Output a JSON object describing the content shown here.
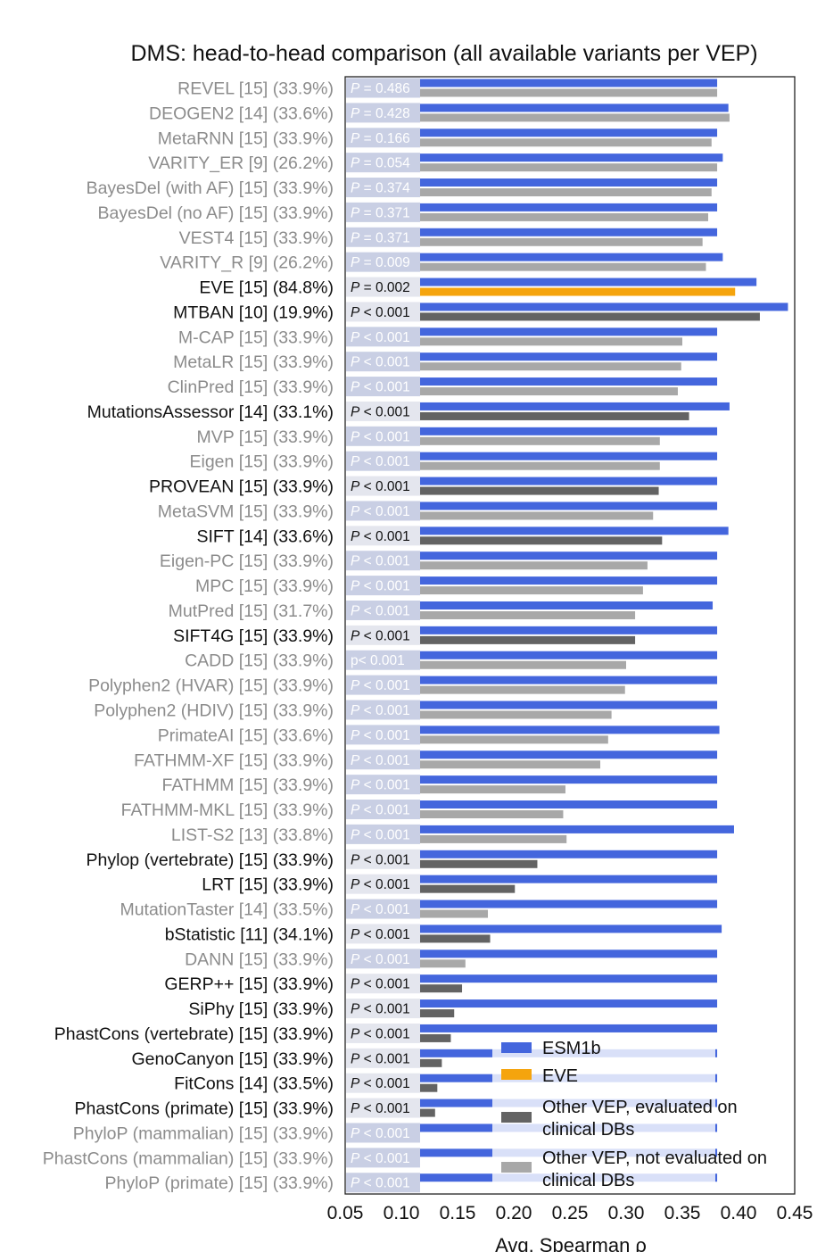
{
  "chart_data": {
    "type": "bar",
    "orientation": "horizontal",
    "title": "DMS: head-to-head comparison (all available variants per VEP)",
    "xlabel": "Avg. Spearman ρ",
    "xlim": [
      0.05,
      0.45
    ],
    "xticks": [
      "0.05",
      "0.10",
      "0.15",
      "0.20",
      "0.25",
      "0.30",
      "0.35",
      "0.40",
      "0.45"
    ],
    "legend": [
      {
        "key": "esm",
        "label": "ESM1b",
        "color": "#4466dd"
      },
      {
        "key": "eve",
        "label": "EVE",
        "color": "#f5a40d"
      },
      {
        "key": "dark",
        "label": "Other VEP, evaluated on clinical DBs",
        "color": "#636363"
      },
      {
        "key": "light",
        "label": "Other VEP, not evaluated on clinical DBs",
        "color": "#a8a8a8"
      }
    ],
    "series": [
      {
        "name": "ESM1b"
      },
      {
        "name": "Other VEP"
      }
    ],
    "rows": [
      {
        "label": "REVEL [15] (33.9%)",
        "p_prefix": "P",
        "p_rest": " = 0.486",
        "esm1b": 0.381,
        "other": 0.381,
        "group": "light"
      },
      {
        "label": "DEOGEN2 [14] (33.6%)",
        "p_prefix": "P",
        "p_rest": " = 0.428",
        "esm1b": 0.391,
        "other": 0.392,
        "group": "light"
      },
      {
        "label": "MetaRNN [15] (33.9%)",
        "p_prefix": "P",
        "p_rest": " = 0.166",
        "esm1b": 0.381,
        "other": 0.376,
        "group": "light"
      },
      {
        "label": "VARITY_ER [9] (26.2%)",
        "p_prefix": "P",
        "p_rest": " = 0.054",
        "esm1b": 0.386,
        "other": 0.381,
        "group": "light"
      },
      {
        "label": "BayesDel (with AF) [15] (33.9%)",
        "p_prefix": "P",
        "p_rest": " = 0.374",
        "esm1b": 0.381,
        "other": 0.376,
        "group": "light"
      },
      {
        "label": "BayesDel (no AF) [15] (33.9%)",
        "p_prefix": "P",
        "p_rest": " = 0.371",
        "esm1b": 0.381,
        "other": 0.373,
        "group": "light"
      },
      {
        "label": "VEST4 [15] (33.9%)",
        "p_prefix": "P",
        "p_rest": " = 0.371",
        "esm1b": 0.381,
        "other": 0.368,
        "group": "light"
      },
      {
        "label": "VARITY_R [9] (26.2%)",
        "p_prefix": "P",
        "p_rest": " = 0.009",
        "esm1b": 0.386,
        "other": 0.371,
        "group": "light"
      },
      {
        "label": "EVE [15] (84.8%)",
        "p_prefix": "P",
        "p_rest": " = 0.002",
        "esm1b": 0.416,
        "other": 0.397,
        "group": "eve"
      },
      {
        "label": "MTBAN [10] (19.9%)",
        "p_prefix": "P",
        "p_rest": " < 0.001",
        "esm1b": 0.444,
        "other": 0.419,
        "group": "dark"
      },
      {
        "label": "M-CAP [15] (33.9%)",
        "p_prefix": "P",
        "p_rest": " < 0.001",
        "esm1b": 0.381,
        "other": 0.35,
        "group": "light"
      },
      {
        "label": "MetaLR [15] (33.9%)",
        "p_prefix": "P",
        "p_rest": " < 0.001",
        "esm1b": 0.381,
        "other": 0.349,
        "group": "light"
      },
      {
        "label": "ClinPred [15] (33.9%)",
        "p_prefix": "P",
        "p_rest": " < 0.001",
        "esm1b": 0.381,
        "other": 0.346,
        "group": "light"
      },
      {
        "label": "MutationsAssessor [14] (33.1%)",
        "p_prefix": "P",
        "p_rest": " < 0.001",
        "esm1b": 0.392,
        "other": 0.356,
        "group": "dark"
      },
      {
        "label": "MVP [15] (33.9%)",
        "p_prefix": "P",
        "p_rest": " < 0.001",
        "esm1b": 0.381,
        "other": 0.33,
        "group": "light"
      },
      {
        "label": "Eigen [15] (33.9%)",
        "p_prefix": "P",
        "p_rest": " < 0.001",
        "esm1b": 0.381,
        "other": 0.33,
        "group": "light"
      },
      {
        "label": "PROVEAN [15] (33.9%)",
        "p_prefix": "P",
        "p_rest": " < 0.001",
        "esm1b": 0.381,
        "other": 0.329,
        "group": "dark"
      },
      {
        "label": "MetaSVM [15] (33.9%)",
        "p_prefix": "P",
        "p_rest": " < 0.001",
        "esm1b": 0.381,
        "other": 0.324,
        "group": "light"
      },
      {
        "label": "SIFT [14] (33.6%)",
        "p_prefix": "P",
        "p_rest": " < 0.001",
        "esm1b": 0.391,
        "other": 0.332,
        "group": "dark"
      },
      {
        "label": "Eigen-PC [15] (33.9%)",
        "p_prefix": "P",
        "p_rest": " < 0.001",
        "esm1b": 0.381,
        "other": 0.319,
        "group": "light"
      },
      {
        "label": "MPC [15] (33.9%)",
        "p_prefix": "P",
        "p_rest": " < 0.001",
        "esm1b": 0.381,
        "other": 0.315,
        "group": "light"
      },
      {
        "label": "MutPred [15] (31.7%)",
        "p_prefix": "P",
        "p_rest": " < 0.001",
        "esm1b": 0.377,
        "other": 0.308,
        "group": "light"
      },
      {
        "label": "SIFT4G [15] (33.9%)",
        "p_prefix": "P",
        "p_rest": " < 0.001",
        "esm1b": 0.381,
        "other": 0.308,
        "group": "dark"
      },
      {
        "label": "CADD [15] (33.9%)",
        "p_prefix": "p",
        "p_rest": "< 0.001",
        "esm1b": 0.381,
        "other": 0.3,
        "group": "light"
      },
      {
        "label": "Polyphen2 (HVAR) [15] (33.9%)",
        "p_prefix": "P",
        "p_rest": " < 0.001",
        "esm1b": 0.381,
        "other": 0.299,
        "group": "light"
      },
      {
        "label": "Polyphen2 (HDIV) [15] (33.9%)",
        "p_prefix": "P",
        "p_rest": " < 0.001",
        "esm1b": 0.381,
        "other": 0.287,
        "group": "light"
      },
      {
        "label": "PrimateAI [15] (33.6%)",
        "p_prefix": "P",
        "p_rest": " < 0.001",
        "esm1b": 0.383,
        "other": 0.284,
        "group": "light"
      },
      {
        "label": "FATHMM-XF [15] (33.9%)",
        "p_prefix": "P",
        "p_rest": " < 0.001",
        "esm1b": 0.381,
        "other": 0.277,
        "group": "light"
      },
      {
        "label": "FATHMM [15] (33.9%)",
        "p_prefix": "P",
        "p_rest": " < 0.001",
        "esm1b": 0.381,
        "other": 0.246,
        "group": "light"
      },
      {
        "label": "FATHMM-MKL [15] (33.9%)",
        "p_prefix": "P",
        "p_rest": " < 0.001",
        "esm1b": 0.381,
        "other": 0.244,
        "group": "light"
      },
      {
        "label": "LIST-S2 [13] (33.8%)",
        "p_prefix": "P",
        "p_rest": " < 0.001",
        "esm1b": 0.396,
        "other": 0.247,
        "group": "light"
      },
      {
        "label": "Phylop (vertebrate) [15] (33.9%)",
        "p_prefix": "P",
        "p_rest": " < 0.001",
        "esm1b": 0.381,
        "other": 0.221,
        "group": "dark"
      },
      {
        "label": "LRT [15] (33.9%)",
        "p_prefix": "P",
        "p_rest": " < 0.001",
        "esm1b": 0.381,
        "other": 0.201,
        "group": "dark"
      },
      {
        "label": "MutationTaster [14] (33.5%)",
        "p_prefix": "P",
        "p_rest": " < 0.001",
        "esm1b": 0.381,
        "other": 0.177,
        "group": "light"
      },
      {
        "label": "bStatistic [11] (34.1%)",
        "p_prefix": "P",
        "p_rest": " < 0.001",
        "esm1b": 0.385,
        "other": 0.179,
        "group": "dark"
      },
      {
        "label": "DANN [15] (33.9%)",
        "p_prefix": "P",
        "p_rest": " < 0.001",
        "esm1b": 0.381,
        "other": 0.157,
        "group": "light"
      },
      {
        "label": "GERP++ [15] (33.9%)",
        "p_prefix": "P",
        "p_rest": " < 0.001",
        "esm1b": 0.381,
        "other": 0.154,
        "group": "dark"
      },
      {
        "label": "SiPhy [15] (33.9%)",
        "p_prefix": "P",
        "p_rest": " < 0.001",
        "esm1b": 0.381,
        "other": 0.147,
        "group": "dark"
      },
      {
        "label": "PhastCons (vertebrate) [15] (33.9%)",
        "p_prefix": "P",
        "p_rest": " < 0.001",
        "esm1b": 0.381,
        "other": 0.144,
        "group": "dark"
      },
      {
        "label": "GenoCanyon [15] (33.9%)",
        "p_prefix": "P",
        "p_rest": " < 0.001",
        "esm1b": 0.381,
        "other": 0.136,
        "group": "dark"
      },
      {
        "label": "FitCons [14] (33.5%)",
        "p_prefix": "P",
        "p_rest": " < 0.001",
        "esm1b": 0.381,
        "other": 0.132,
        "group": "dark"
      },
      {
        "label": "PhastCons (primate) [15] (33.9%)",
        "p_prefix": "P",
        "p_rest": " < 0.001",
        "esm1b": 0.381,
        "other": 0.13,
        "group": "dark"
      },
      {
        "label": "PhyloP (mammalian) [15] (33.9%)",
        "p_prefix": "P",
        "p_rest": " < 0.001",
        "esm1b": 0.381,
        "other": 0.115,
        "group": "light"
      },
      {
        "label": "PhastCons (mammalian) [15] (33.9%)",
        "p_prefix": "P",
        "p_rest": " < 0.001",
        "esm1b": 0.381,
        "other": 0.1,
        "group": "light"
      },
      {
        "label": "PhyloP (primate) [15] (33.9%)",
        "p_prefix": "P",
        "p_rest": " < 0.001",
        "esm1b": 0.381,
        "other": 0.098,
        "group": "light"
      }
    ]
  }
}
